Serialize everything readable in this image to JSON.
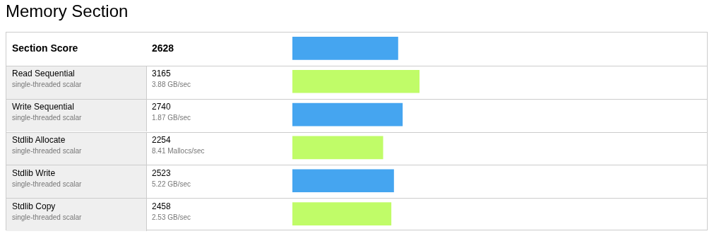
{
  "chart_data": {
    "type": "bar",
    "orientation": "horizontal",
    "title": "Memory Section",
    "categories": [
      "Section Score",
      "Read Sequential",
      "Write Sequential",
      "Stdlib Allocate",
      "Stdlib Write",
      "Stdlib Copy"
    ],
    "values": [
      2628,
      3165,
      2740,
      2254,
      2523,
      2458
    ],
    "colors": [
      "#45a5f0",
      "#c0fc68",
      "#45a5f0",
      "#c0fc68",
      "#45a5f0",
      "#c0fc68"
    ],
    "data_labels": true,
    "annotations": [
      "single-threaded scalar",
      "3.88 GB/sec",
      "single-threaded scalar",
      "1.87 GB/sec",
      "single-threaded scalar",
      "8.41 Mallocs/sec",
      "single-threaded scalar",
      "5.22 GB/sec",
      "single-threaded scalar",
      "2.53 GB/sec"
    ]
  }
}
